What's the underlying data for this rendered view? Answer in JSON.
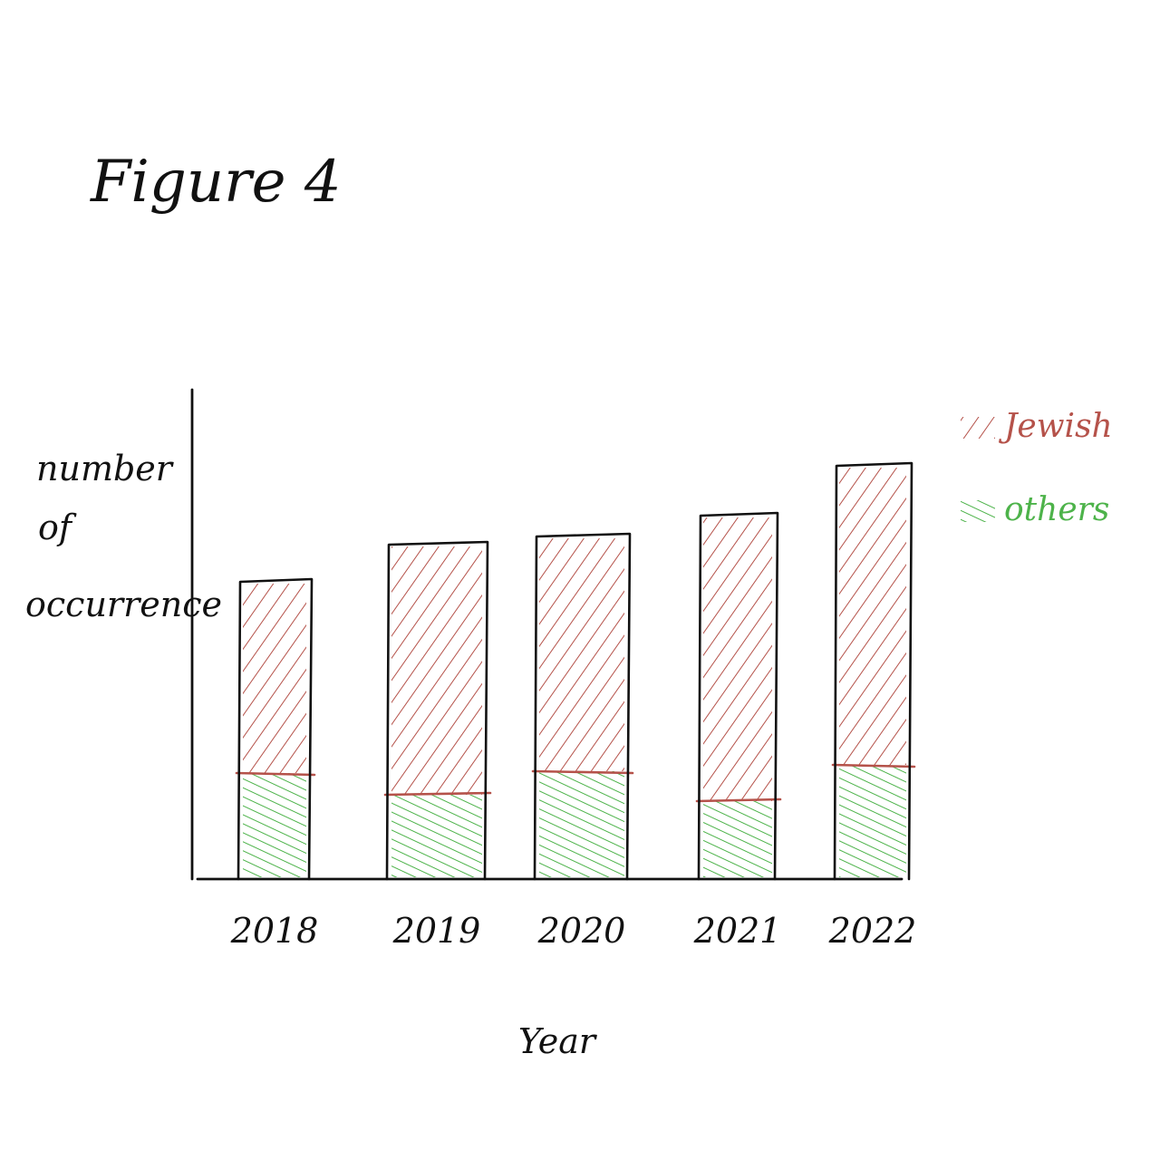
{
  "chart_data": {
    "type": "bar",
    "stacked": true,
    "title": "Figure 4",
    "xlabel": "Year",
    "ylabel": "number of occurrence",
    "categories": [
      "2018",
      "2019",
      "2020",
      "2021",
      "2022"
    ],
    "series": [
      {
        "name": "others",
        "values": [
          117,
          93,
          119,
          86,
          126
        ],
        "color": "#4db34a"
      },
      {
        "name": "Jewish",
        "values": [
          213,
          278,
          261,
          317,
          332
        ],
        "color": "#b5524a"
      }
    ],
    "ylim": [
      0,
      540
    ],
    "grid": false,
    "legend": "top-right",
    "y_ticks_shown": false
  }
}
